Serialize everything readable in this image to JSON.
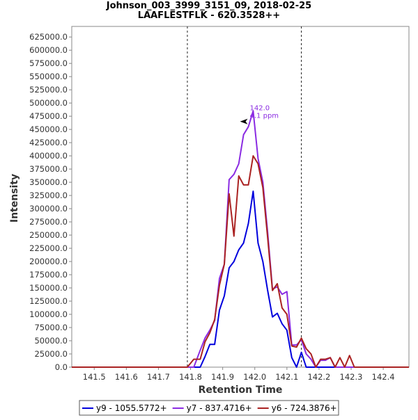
{
  "chart_data": {
    "type": "line",
    "title": "Johnson_003_3999_3151_09, 2018-02-25",
    "subtitle": "LAAFLESTFLK - 620.3528++",
    "xlabel": "Retention Time",
    "ylabel": "Intensity",
    "xlim": [
      141.43,
      142.48
    ],
    "ylim": [
      0,
      645000
    ],
    "x_ticks": [
      141.5,
      141.6,
      141.7,
      141.8,
      141.9,
      142.0,
      142.1,
      142.2,
      142.3,
      142.4
    ],
    "x_tick_labels": [
      "141.5",
      "141.6",
      "141.7",
      "141.8",
      "141.9",
      "142.0",
      "142.1",
      "142.2",
      "142.3",
      "142.4"
    ],
    "y_ticks": [
      0,
      25000,
      50000,
      75000,
      100000,
      125000,
      150000,
      175000,
      200000,
      225000,
      250000,
      275000,
      300000,
      325000,
      350000,
      375000,
      400000,
      425000,
      450000,
      475000,
      500000,
      525000,
      550000,
      575000,
      600000,
      625000
    ],
    "y_tick_labels": [
      "0.0",
      "25000.0",
      "50000.0",
      "75000.0",
      "100000.0",
      "125000.0",
      "150000.0",
      "175000.0",
      "200000.0",
      "225000.0",
      "250000.0",
      "275000.0",
      "300000.0",
      "325000.0",
      "350000.0",
      "375000.0",
      "400000.0",
      "425000.0",
      "450000.0",
      "475000.0",
      "500000.0",
      "525000.0",
      "550000.0",
      "575000.0",
      "600000.0",
      "625000.0"
    ],
    "boundaries": [
      141.79,
      142.145
    ],
    "annotation": {
      "x": 141.98,
      "y": 465000,
      "label": "142.0",
      "sublabel": "4.1 ppm",
      "color": "#8a2be2"
    },
    "legend_position": "bottom",
    "series": [
      {
        "name": "y9 - 1055.5772+",
        "color": "#0000dd",
        "x": [
          141.43,
          141.81,
          141.83,
          141.845,
          141.86,
          141.875,
          141.89,
          141.905,
          141.92,
          141.935,
          141.95,
          141.965,
          141.98,
          141.995,
          142.01,
          142.025,
          142.04,
          142.055,
          142.07,
          142.085,
          142.1,
          142.115,
          142.13,
          142.145,
          142.16,
          142.175,
          142.48
        ],
        "y": [
          0,
          0,
          0,
          20000,
          43000,
          43000,
          108000,
          135000,
          188000,
          200000,
          222000,
          235000,
          272000,
          333000,
          235000,
          200000,
          145000,
          95000,
          102000,
          82000,
          70000,
          18000,
          0,
          28000,
          0,
          0,
          0
        ]
      },
      {
        "name": "y7 - 837.4716+",
        "color": "#8a2be2",
        "x": [
          141.43,
          141.81,
          141.83,
          141.845,
          141.86,
          141.875,
          141.89,
          141.905,
          141.92,
          141.935,
          141.95,
          141.965,
          141.98,
          141.995,
          142.01,
          142.025,
          142.04,
          142.055,
          142.07,
          142.085,
          142.1,
          142.115,
          142.13,
          142.145,
          142.16,
          142.175,
          142.19,
          142.205,
          142.22,
          142.235,
          142.25,
          142.48
        ],
        "y": [
          0,
          0,
          32000,
          55000,
          70000,
          88000,
          168000,
          195000,
          355000,
          365000,
          385000,
          440000,
          455000,
          485000,
          395000,
          350000,
          255000,
          148000,
          152000,
          138000,
          143000,
          42000,
          42000,
          52000,
          25000,
          15000,
          0,
          13000,
          13000,
          18000,
          0,
          0
        ]
      },
      {
        "name": "y6 - 724.3876+",
        "color": "#aa2222",
        "x": [
          141.43,
          141.79,
          141.81,
          141.83,
          141.845,
          141.86,
          141.875,
          141.89,
          141.905,
          141.92,
          141.935,
          141.95,
          141.965,
          141.98,
          141.995,
          142.01,
          142.025,
          142.04,
          142.055,
          142.07,
          142.085,
          142.1,
          142.115,
          142.13,
          142.145,
          142.16,
          142.175,
          142.19,
          142.205,
          142.22,
          142.235,
          142.25,
          142.265,
          142.28,
          142.295,
          142.31,
          142.48
        ],
        "y": [
          0,
          0,
          15000,
          15000,
          48000,
          65000,
          90000,
          155000,
          195000,
          328000,
          248000,
          362000,
          345000,
          345000,
          400000,
          385000,
          340000,
          245000,
          145000,
          158000,
          112000,
          100000,
          40000,
          38000,
          55000,
          35000,
          25000,
          0,
          15000,
          15000,
          18000,
          0,
          18000,
          0,
          22000,
          0,
          0
        ]
      }
    ]
  }
}
